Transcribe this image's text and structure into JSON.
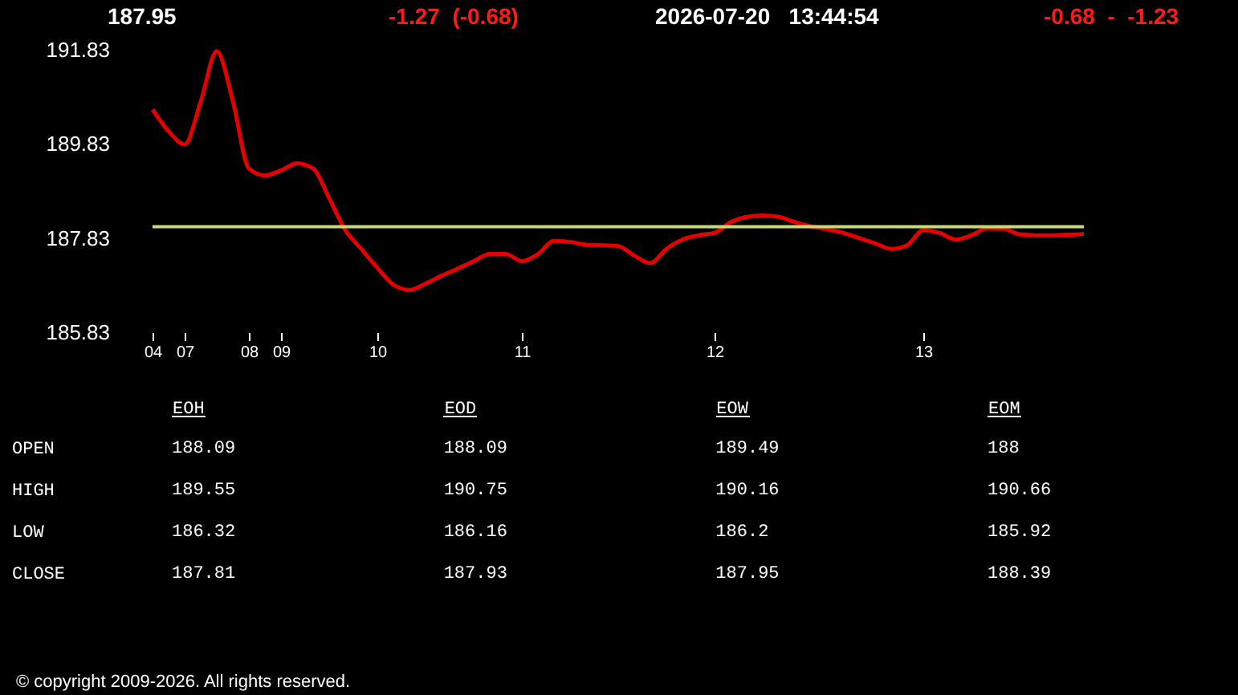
{
  "chart_data": [
    {
      "type": "line",
      "title": "187.95",
      "annotations": [
        "-1.27  (-0.68)",
        "2026-07-20   13:44:54",
        "-0.68  -  -1.23"
      ],
      "categories": [
        "04",
        null,
        "07",
        null,
        null,
        null,
        "08",
        null,
        "09",
        null,
        null,
        null,
        null,
        null,
        "10",
        null,
        null,
        null,
        null,
        null,
        null,
        null,
        null,
        "11",
        null,
        null,
        null,
        null,
        null,
        null,
        null,
        null,
        null,
        null,
        null,
        "12",
        null,
        null,
        null,
        null,
        null,
        null,
        null,
        null,
        null,
        null,
        null,
        null,
        "13",
        null,
        null,
        null,
        null,
        null,
        null,
        null,
        null,
        null,
        null
      ],
      "values": [
        190.56,
        190.1,
        189.82,
        190.73,
        191.8,
        190.74,
        189.31,
        189.16,
        189.27,
        189.42,
        189.31,
        188.68,
        188.0,
        187.6,
        187.2,
        186.84,
        186.73,
        186.86,
        187.03,
        187.18,
        187.34,
        187.49,
        187.49,
        187.34,
        187.49,
        187.77,
        187.75,
        187.69,
        187.68,
        187.66,
        187.46,
        187.3,
        187.6,
        187.8,
        187.89,
        187.94,
        188.17,
        188.28,
        188.31,
        188.28,
        188.17,
        188.08,
        188.02,
        187.94,
        187.83,
        187.72,
        187.6,
        187.68,
        188.0,
        187.94,
        187.8,
        187.89,
        188.04,
        188.03,
        187.91,
        187.89,
        187.89,
        187.9,
        187.92
      ],
      "color": "#e50000",
      "ylim": [
        185.83,
        191.83
      ],
      "yticks": [
        185.83,
        187.83,
        189.83,
        191.83
      ],
      "ref_lines": [
        {
          "axis": "y",
          "value": 188.07,
          "color": "#c8d870"
        }
      ]
    },
    {
      "type": "heatmap",
      "categories": [
        "EOH",
        "EOD",
        "EOW",
        "EOM"
      ],
      "y_categories": [
        "OPEN",
        "HIGH",
        "LOW",
        "CLOSE"
      ],
      "cells": [
        [
          188.09,
          188.09,
          189.49,
          188
        ],
        [
          189.55,
          190.75,
          190.16,
          190.66
        ],
        [
          186.32,
          186.16,
          186.2,
          185.92
        ],
        [
          187.81,
          187.93,
          187.95,
          188.39
        ]
      ],
      "data_labels": true,
      "annotations": [
        "© copyright 2009-2026. All rights reserved."
      ]
    }
  ]
}
